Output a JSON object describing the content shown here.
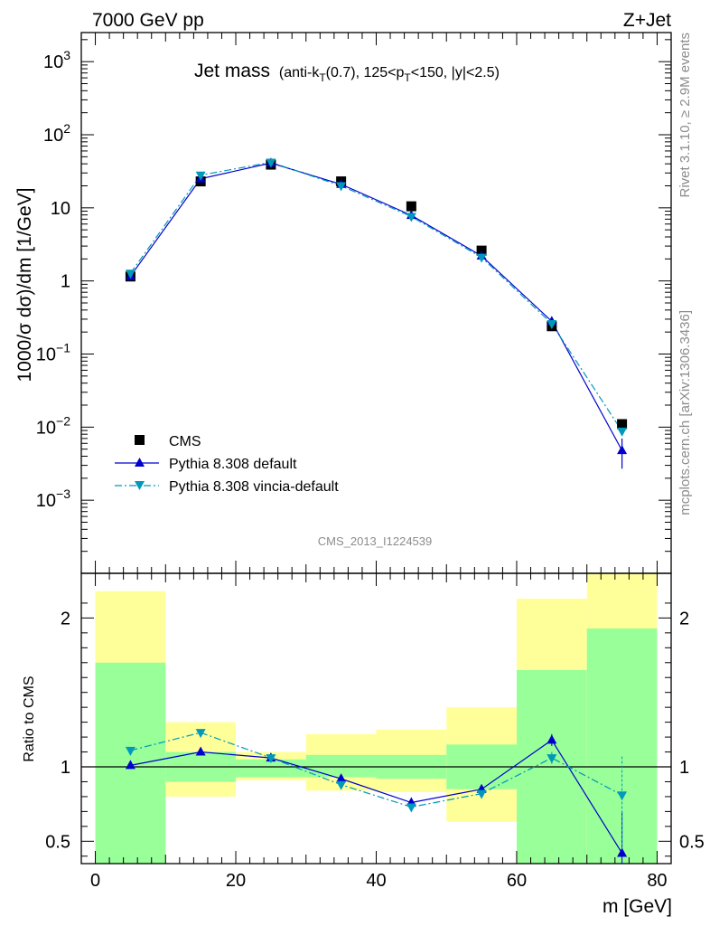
{
  "header": {
    "left": "7000 GeV pp",
    "right": "Z+Jet"
  },
  "chart_data": [
    {
      "type": "scatter",
      "title_main": "Jet mass",
      "title_sub_parts": [
        "(anti-k",
        "T",
        "(0.7), 125<p",
        "T",
        "<150, |y|<2.5)"
      ],
      "ylabel": "1000/σ dσ)/dm [1/GeV]",
      "xlabel": "m [GeV]",
      "yscale": "log",
      "xlim": [
        -2,
        82
      ],
      "ylim": [
        0.0001,
        2500
      ],
      "y_ticks": [
        {
          "v": 1000,
          "base": "10",
          "exp": "3"
        },
        {
          "v": 100,
          "base": "10",
          "exp": "2"
        },
        {
          "v": 10,
          "base": "10",
          "exp": ""
        },
        {
          "v": 1,
          "base": "1",
          "exp": ""
        },
        {
          "v": 0.1,
          "base": "10",
          "exp": "−1"
        },
        {
          "v": 0.01,
          "base": "10",
          "exp": "−2"
        },
        {
          "v": 0.001,
          "base": "10",
          "exp": "−3"
        }
      ],
      "x": [
        5,
        15,
        25,
        35,
        45,
        55,
        65,
        75
      ],
      "series": [
        {
          "name": "CMS",
          "color": "#000000",
          "marker": "square",
          "values": [
            1.15,
            23,
            39,
            23,
            10.5,
            2.6,
            0.24,
            0.011
          ]
        },
        {
          "name": "Pythia 8.308 default",
          "color": "#0000cc",
          "marker": "triangle-up",
          "line": "solid",
          "values": [
            1.16,
            25,
            41,
            21,
            7.9,
            2.2,
            0.28,
            0.0048
          ],
          "err_last": [
            0.0027,
            0.007
          ]
        },
        {
          "name": "Pythia 8.308 vincia-default",
          "color": "#0099bb",
          "marker": "triangle-down",
          "line": "dashdot",
          "values": [
            1.27,
            28,
            42,
            20,
            7.6,
            2.1,
            0.26,
            0.0088
          ]
        }
      ],
      "legend_position": "bottom-left",
      "watermark": "CMS_2013_I1224539"
    },
    {
      "type": "scatter",
      "ylabel": "Ratio to CMS",
      "xlabel": "m [GeV]",
      "xlim": [
        -2,
        82
      ],
      "ylim": [
        0.35,
        2.3
      ],
      "y_ticks": [
        0.5,
        1,
        2
      ],
      "x_ticks": [
        0,
        20,
        40,
        60,
        80
      ],
      "x_tick_labels": [
        "0",
        "20",
        "40",
        "60",
        "80"
      ],
      "y_tick_labels": [
        "0.5",
        "1",
        "2"
      ],
      "bands": {
        "bins": [
          [
            0,
            10
          ],
          [
            10,
            20
          ],
          [
            20,
            30
          ],
          [
            30,
            40
          ],
          [
            40,
            50
          ],
          [
            50,
            60
          ],
          [
            60,
            70
          ],
          [
            70,
            80
          ]
        ],
        "inner": [
          [
            0.35,
            1.7
          ],
          [
            0.9,
            1.1
          ],
          [
            0.93,
            1.05
          ],
          [
            0.93,
            1.08
          ],
          [
            0.92,
            1.08
          ],
          [
            0.85,
            1.15
          ],
          [
            0.35,
            1.65
          ],
          [
            0.35,
            1.93
          ]
        ],
        "outer": [
          [
            0.35,
            2.18
          ],
          [
            0.8,
            1.3
          ],
          [
            0.91,
            1.1
          ],
          [
            0.84,
            1.22
          ],
          [
            0.83,
            1.25
          ],
          [
            0.63,
            1.4
          ],
          [
            0.35,
            2.13
          ],
          [
            0.35,
            2.3
          ]
        ],
        "inner_color": "#99ff99",
        "outer_color": "#ffff99"
      },
      "series": [
        {
          "name": "Pythia 8.308 default",
          "color": "#0000cc",
          "values": [
            1.01,
            1.1,
            1.06,
            0.92,
            0.76,
            0.85,
            1.18,
            0.42
          ],
          "err_last": [
            0.35,
            0.7
          ]
        },
        {
          "name": "Pythia 8.308 vincia-default",
          "color": "#0099bb",
          "values": [
            1.11,
            1.23,
            1.06,
            0.88,
            0.73,
            0.82,
            1.06,
            0.81
          ],
          "err_last": [
            0.45,
            1.07
          ]
        }
      ]
    }
  ],
  "side_labels": {
    "rivet": "Rivet 3.1.10, ≥ 2.9M events",
    "mcplots": "mcplots.cern.ch [arXiv:1306.3436]"
  }
}
